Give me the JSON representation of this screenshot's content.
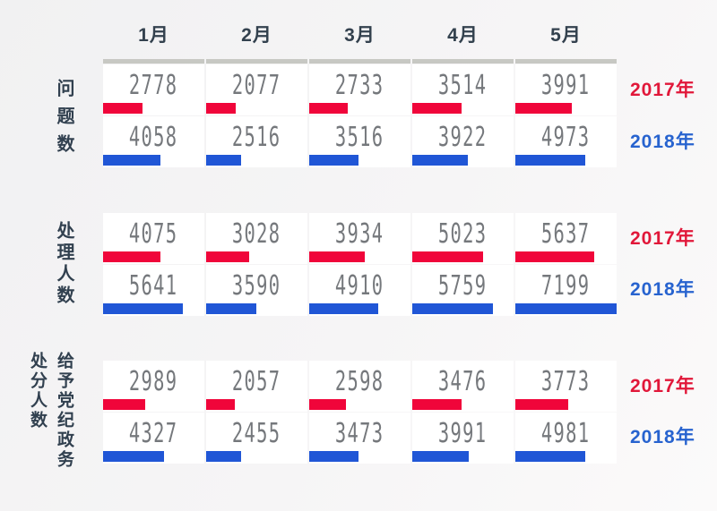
{
  "colors": {
    "red_bar": "#f0053a",
    "blue_bar": "#2056d6",
    "red_text": "#e11739",
    "blue_text": "#2763cf",
    "axis_gray": "#c7c8c3",
    "number_gray": "#75787c",
    "label_dark": "#31404f",
    "background": "#f4f4f5",
    "cell_background": "#ffffff"
  },
  "chart_data": {
    "type": "bar",
    "orientation": "horizontal",
    "categories": [
      "1月",
      "2月",
      "3月",
      "4月",
      "5月"
    ],
    "legend_position": "right",
    "value_axis_max": 7199,
    "groups": [
      {
        "title": "问题数",
        "series": [
          {
            "name": "2017年",
            "color": "#f0053a",
            "values": [
              2778,
              2077,
              2733,
              3514,
              3991
            ]
          },
          {
            "name": "2018年",
            "color": "#2056d6",
            "values": [
              4058,
              2516,
              3516,
              3922,
              4973
            ]
          }
        ]
      },
      {
        "title": "处理人数",
        "series": [
          {
            "name": "2017年",
            "color": "#f0053a",
            "values": [
              4075,
              3028,
              3934,
              5023,
              5637
            ]
          },
          {
            "name": "2018年",
            "color": "#2056d6",
            "values": [
              5641,
              3590,
              4910,
              5759,
              7199
            ]
          }
        ]
      },
      {
        "title": "处分人数",
        "subtitle": "给予党纪政务",
        "series": [
          {
            "name": "2017年",
            "color": "#f0053a",
            "values": [
              2989,
              2057,
              2598,
              3476,
              3773
            ]
          },
          {
            "name": "2018年",
            "color": "#2056d6",
            "values": [
              4327,
              2455,
              3473,
              3991,
              4981
            ]
          }
        ]
      }
    ]
  }
}
